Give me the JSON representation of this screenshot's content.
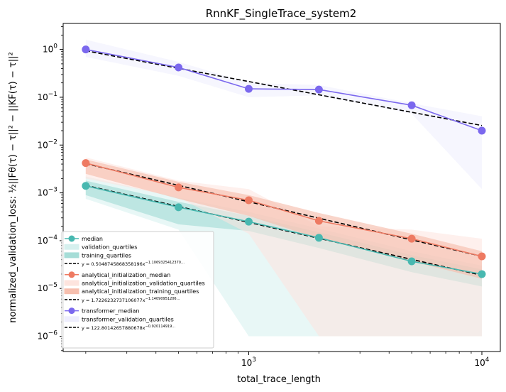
{
  "chart_data": {
    "type": "line",
    "title": "RnnKF_SingleTrace_system2",
    "xlabel": "total_trace_length",
    "ylabel": "normalized_validation_loss: ½||Fθ(τ) − τ||² − ||KF(τ) − τ||²",
    "x_scale": "log",
    "y_scale": "log",
    "xlim": [
      160,
      12000
    ],
    "ylim": [
      4.8e-07,
      3.5
    ],
    "grid": false,
    "legend_placement": "lower-left",
    "x_ticks": [
      {
        "value": 1000,
        "base": "10",
        "exp": "3"
      },
      {
        "value": 10000,
        "base": "10",
        "exp": "4"
      }
    ],
    "y_ticks": [
      {
        "value": 1,
        "base": "10",
        "exp": "0"
      },
      {
        "value": 0.1,
        "base": "10",
        "exp": "−1"
      },
      {
        "value": 0.01,
        "base": "10",
        "exp": "−2"
      },
      {
        "value": 0.001,
        "base": "10",
        "exp": "−3"
      },
      {
        "value": 0.0001,
        "base": "10",
        "exp": "−4"
      },
      {
        "value": 1e-05,
        "base": "10",
        "exp": "−5"
      },
      {
        "value": 1e-06,
        "base": "10",
        "exp": "−6"
      }
    ],
    "x": [
      200,
      500,
      1000,
      2000,
      5000,
      10000
    ],
    "groups": [
      {
        "median_name": "median",
        "median_color": "#48b8b0",
        "median": [
          0.0014,
          0.0005,
          0.00025,
          0.000115,
          3.7e-05,
          2e-05
        ],
        "validation_name": "validation_quartiles",
        "validation_color": "#d6f0ee",
        "validation_low": [
          0.00075,
          0.00017,
          1e-06,
          1e-06,
          1e-06,
          1e-06
        ],
        "validation_high": [
          0.0022,
          0.0008,
          0.0004,
          0.00018,
          6e-05,
          3e-05
        ],
        "training_name": "training_quartiles",
        "training_color": "#a6ddd7",
        "training_low": [
          0.0009,
          0.00022,
          0.00016,
          7e-05,
          2.2e-05,
          1.1e-05
        ],
        "training_high": [
          0.0018,
          0.00065,
          0.00033,
          0.00015,
          5e-05,
          2.5e-05
        ],
        "fit_name": "y = 0.5048745868358196x^{−1.1069325412370…}",
        "fit_label_main": "y = 0.5048745868358196x",
        "fit_label_exp": "−1.1069325412370…",
        "fit_a": 0.5048745868358196,
        "fit_b": -1.106932541237062
      },
      {
        "median_name": "analytical_initialization_median",
        "median_color": "#ee7a62",
        "median": [
          0.0042,
          0.0013,
          0.0007,
          0.00026,
          0.00011,
          4.7e-05
        ],
        "validation_name": "analytical_initialization_validation_quartiles",
        "validation_color": "#fde4de",
        "validation_low": [
          0.002,
          0.0008,
          0.00014,
          1e-06,
          1e-06,
          1e-06
        ],
        "validation_high": [
          0.0055,
          0.0018,
          0.0012,
          0.0002,
          0.00017,
          0.00011
        ],
        "training_name": "analytical_initialization_training_quartiles",
        "training_color": "#f6bfae",
        "training_low": [
          0.0025,
          0.00075,
          0.00033,
          0.00011,
          3.7e-05,
          1.6e-05
        ],
        "training_high": [
          0.005,
          0.0017,
          0.0009,
          0.00038,
          0.00014,
          6e-05
        ],
        "fit_name": "y = 1.7226232737106077x^{−1.14090951206…}",
        "fit_label_main": "y = 1.7226232737106077x",
        "fit_label_exp": "−1.14090951206…",
        "fit_a": 1.7226232737106077,
        "fit_b": -1.1409095120609716
      },
      {
        "median_name": "transformer_median",
        "median_color": "#7b68ee",
        "median": [
          1.0,
          0.42,
          0.15,
          0.145,
          0.068,
          0.02
        ],
        "validation_name": "transformer_validation_quartiles",
        "validation_color": "#eeeefd",
        "validation_low": [
          0.7,
          0.28,
          0.1,
          0.11,
          0.045,
          0.0012
        ],
        "validation_high": [
          1.6,
          0.55,
          0.2,
          0.18,
          0.075,
          0.04
        ],
        "fit_name": "y = 122.8014265788067…x^{−0.92011491…}",
        "fit_label_main": "y = 122.80142657880678x",
        "fit_label_exp": "−0.920114919…",
        "fit_a": 122.80142657880678,
        "fit_b": -0.9201149191902835
      }
    ],
    "fit_color": "#000000"
  }
}
